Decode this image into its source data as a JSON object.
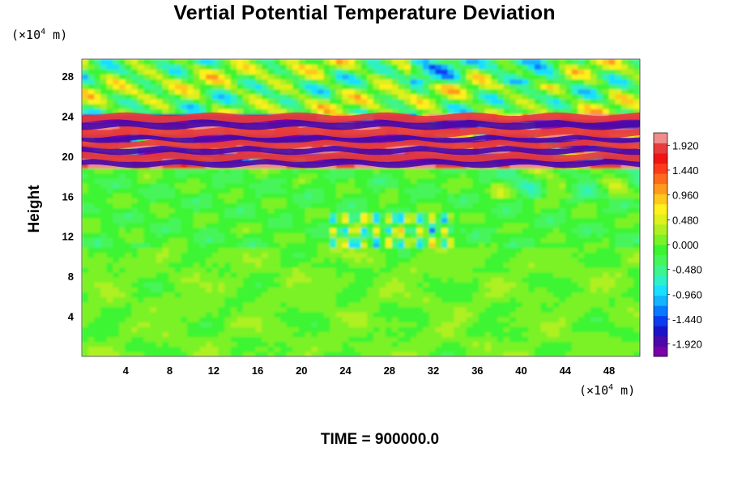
{
  "chart_data": {
    "type": "heatmap",
    "title": "Vertial Potential Temperature Deviation",
    "ylabel": "Height",
    "x_unit": {
      "prefix": "(×10",
      "exp": "4",
      "suffix": " m)"
    },
    "y_unit": {
      "prefix": "(×10",
      "exp": "4",
      "suffix": " m)"
    },
    "x_ticks": [
      4,
      8,
      12,
      16,
      20,
      24,
      28,
      32,
      36,
      40,
      44,
      48
    ],
    "y_ticks": [
      4,
      8,
      12,
      16,
      20,
      24,
      28
    ],
    "xlim": [
      0,
      50.8
    ],
    "ylim": [
      0,
      29.7
    ],
    "colorbar": {
      "ticks": [
        "1.920",
        "1.440",
        "0.960",
        "0.480",
        "0.000",
        "-0.480",
        "-0.960",
        "-1.440",
        "-1.920"
      ],
      "range": [
        -2.16,
        2.16
      ],
      "colors": [
        "#7a00a8",
        "#4b0aa8",
        "#1a14c8",
        "#0a3cf0",
        "#0a78ff",
        "#14b4ff",
        "#19e0ff",
        "#2ef0c8",
        "#3cf58c",
        "#46f55a",
        "#3cf532",
        "#7af228",
        "#aef022",
        "#ddf01c",
        "#fff01e",
        "#ffc81e",
        "#ff9a1e",
        "#ff6a1c",
        "#ff3a1a",
        "#f01414",
        "#e63c3c",
        "#f08c8c"
      ]
    },
    "bands": [
      {
        "y_min": 0,
        "y_max": 11,
        "value": 0.0,
        "texture": "quiet"
      },
      {
        "y_min": 11,
        "y_max": 18.8,
        "value": -0.05,
        "texture": "turbulent-convective"
      },
      {
        "y_min": 18.8,
        "y_max": 24.5,
        "value": 1.92,
        "alt_value": -1.92,
        "texture": "strong-oscillation"
      },
      {
        "y_min": 24.5,
        "y_max": 29.7,
        "value": 0.5,
        "texture": "gravity-waves"
      }
    ]
  },
  "footer": {
    "time_label": "TIME = 900000.0"
  }
}
